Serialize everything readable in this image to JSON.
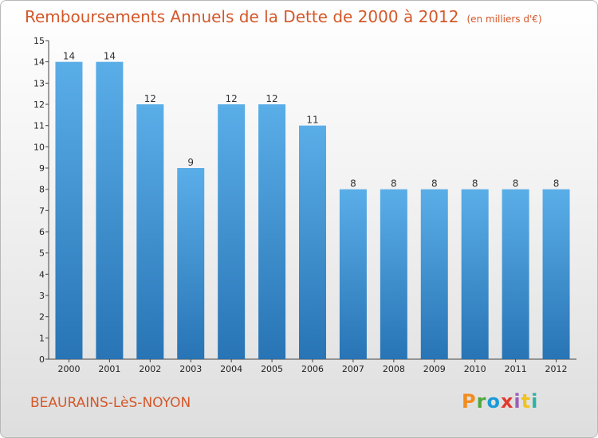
{
  "header": {
    "title": "Remboursements Annuels de la Dette de 2000 à 2012",
    "unit": "(en milliers d'€)"
  },
  "footer": {
    "town": "BEAURAINS-LèS-NOYON",
    "brand": "Proxiti"
  },
  "brand_colors": [
    "#f28c1e",
    "#4fa83d",
    "#1a9ad7",
    "#e2392f",
    "#9b5fb5",
    "#f2c21e",
    "#2bb3a3"
  ],
  "colors": {
    "title": "#d4582a",
    "bar_top": "#5aaee8",
    "bar_bottom": "#2874b5"
  },
  "chart_data": {
    "type": "bar",
    "title": "Remboursements Annuels de la Dette de 2000 à 2012",
    "categories": [
      "2000",
      "2001",
      "2002",
      "2003",
      "2004",
      "2005",
      "2006",
      "2007",
      "2008",
      "2009",
      "2010",
      "2011",
      "2012"
    ],
    "values": [
      14,
      14,
      12,
      9,
      12,
      12,
      11,
      8,
      8,
      8,
      8,
      8,
      8
    ],
    "data_labels": [
      "14",
      "14",
      "12",
      "9",
      "12",
      "12",
      "11",
      "8",
      "8",
      "8",
      "8",
      "8",
      "8"
    ],
    "ylim": [
      0,
      15
    ],
    "yticks": [
      "0",
      "1",
      "2",
      "3",
      "4",
      "5",
      "6",
      "7",
      "8",
      "9",
      "10",
      "11",
      "12",
      "13",
      "14",
      "15"
    ],
    "grid": false,
    "legend": "none"
  }
}
